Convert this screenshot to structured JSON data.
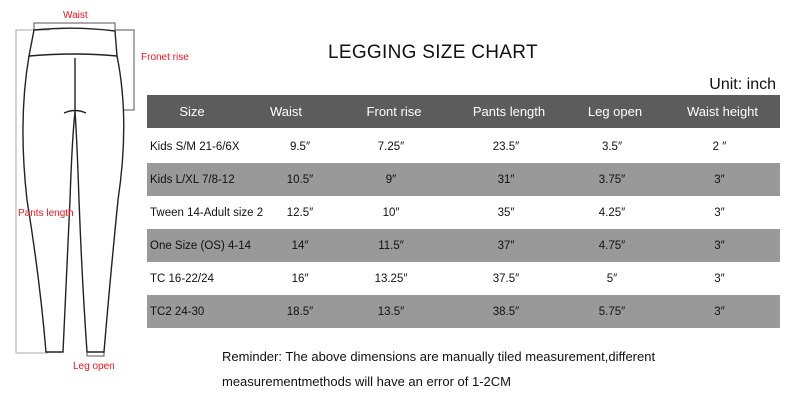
{
  "diagram": {
    "labels": {
      "waist": "Waist",
      "front_rise": "Fronet rise",
      "pants_length": "Pants length",
      "leg_open": "Leg open"
    }
  },
  "title": "LEGGING SIZE CHART",
  "unit": "Unit: inch",
  "table": {
    "headers": [
      "Size",
      "Waist",
      "Front rise",
      "Pants length",
      "Leg open",
      "Waist height"
    ],
    "rows": [
      [
        "Kids S/M 21-6/6X",
        "9.5″",
        "7.25″",
        "23.5″",
        "3.5″",
        "2 ″"
      ],
      [
        "Kids L/XL 7/8-12",
        "10.5″",
        "9″",
        "31″",
        "3.75″",
        "3″"
      ],
      [
        "Tween 14-Adult size 2",
        "12.5″",
        "10″",
        "35″",
        "4.25″",
        "3″"
      ],
      [
        "One Size  (OS)   4-14",
        "14″",
        "11.5″",
        "37″",
        "4.75″",
        "3″"
      ],
      [
        "TC 16-22/24",
        "16″",
        "13.25″",
        "37.5″",
        "5″",
        "3″"
      ],
      [
        "TC2 24-30",
        "18.5″",
        "13.5″",
        "38.5″",
        "5.75″",
        "3″"
      ]
    ]
  },
  "note": [
    "Reminder: The above dimensions are manually tiled measurement,different",
    "measurementmethods will have an error of 1-2CM"
  ],
  "colors": {
    "header": "#5c5c5c",
    "stripe": "#999999",
    "label": "#f0141e"
  }
}
